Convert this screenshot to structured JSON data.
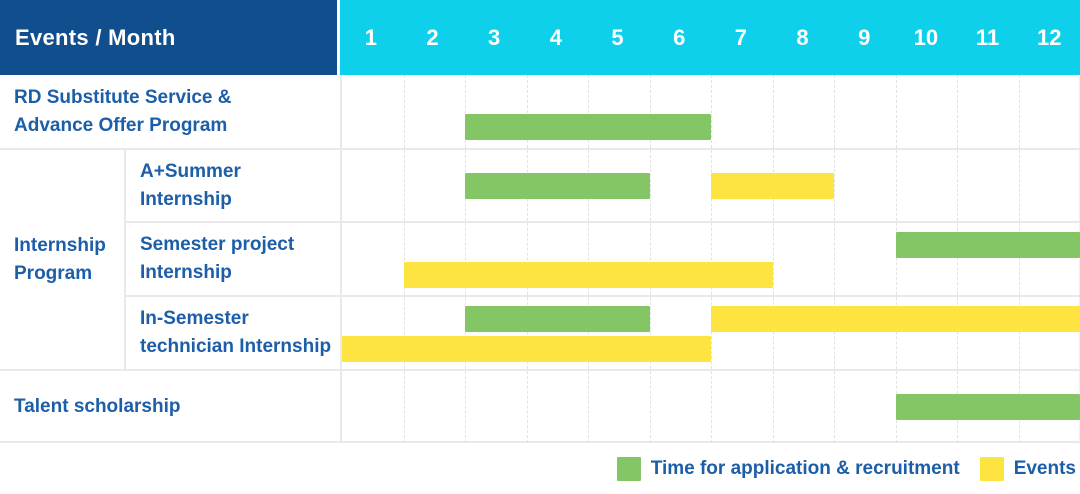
{
  "header": {
    "title": "Events / Month"
  },
  "months": [
    "1",
    "2",
    "3",
    "4",
    "5",
    "6",
    "7",
    "8",
    "9",
    "10",
    "11",
    "12"
  ],
  "colors": {
    "header_navy": "#114e8d",
    "header_cyan": "#0fd0ea",
    "recruitment_green": "#84c566",
    "event_yellow": "#fde440",
    "label_blue": "#1c5ea8",
    "grid_line": "#e9e9e9"
  },
  "group_label_lines": [
    "Internship",
    "Program"
  ],
  "rows": [
    {
      "label_lines": [
        "RD Substitute Service &",
        "Advance Offer Program"
      ],
      "group": null,
      "lanes": [
        [],
        [
          {
            "kind": "recruitment",
            "start_month": 3,
            "end_month": 6
          }
        ]
      ]
    },
    {
      "label_lines": [
        "A+Summer",
        "Internship"
      ],
      "group": "Internship Program",
      "lanes": [
        [
          {
            "kind": "recruitment",
            "start_month": 3,
            "end_month": 5
          },
          {
            "kind": "event",
            "start_month": 7,
            "end_month": 8
          }
        ]
      ]
    },
    {
      "label_lines": [
        "Semester project",
        "Internship"
      ],
      "group": "Internship Program",
      "lanes": [
        [
          {
            "kind": "recruitment",
            "start_month": 10,
            "end_month": 12
          }
        ],
        [
          {
            "kind": "event",
            "start_month": 2,
            "end_month": 7
          }
        ]
      ]
    },
    {
      "label_lines": [
        "In-Semester",
        "technician Internship"
      ],
      "group": "Internship Program",
      "lanes": [
        [
          {
            "kind": "recruitment",
            "start_month": 3,
            "end_month": 5
          },
          {
            "kind": "event",
            "start_month": 7,
            "end_month": 12
          }
        ],
        [
          {
            "kind": "event",
            "start_month": 1,
            "end_month": 6
          }
        ]
      ]
    },
    {
      "label_lines": [
        "Talent scholarship"
      ],
      "group": null,
      "lanes": [
        [
          {
            "kind": "recruitment",
            "start_month": 10,
            "end_month": 12
          }
        ]
      ]
    }
  ],
  "legend": [
    {
      "kind": "recruitment",
      "label": "Time for application & recruitment"
    },
    {
      "kind": "event",
      "label": "Events"
    }
  ],
  "chart_data": {
    "type": "bar",
    "subtype": "gantt",
    "title": "Events / Month",
    "x": {
      "label": "Month",
      "ticks": [
        1,
        2,
        3,
        4,
        5,
        6,
        7,
        8,
        9,
        10,
        11,
        12
      ],
      "range": [
        1,
        12
      ]
    },
    "grid": true,
    "legend_position": "bottom-right",
    "series_legend": [
      {
        "name": "Time for application & recruitment",
        "color": "#84c566"
      },
      {
        "name": "Events",
        "color": "#fde440"
      }
    ],
    "tasks": [
      {
        "name": "RD Substitute Service & Advance Offer Program",
        "group": null,
        "bars": [
          {
            "series": "Time for application & recruitment",
            "start_month": 3,
            "end_month": 6
          }
        ]
      },
      {
        "name": "A+Summer Internship",
        "group": "Internship Program",
        "bars": [
          {
            "series": "Time for application & recruitment",
            "start_month": 3,
            "end_month": 5
          },
          {
            "series": "Events",
            "start_month": 7,
            "end_month": 8
          }
        ]
      },
      {
        "name": "Semester project Internship",
        "group": "Internship Program",
        "bars": [
          {
            "series": "Time for application & recruitment",
            "start_month": 10,
            "end_month": 12
          },
          {
            "series": "Events",
            "start_month": 2,
            "end_month": 7
          }
        ]
      },
      {
        "name": "In-Semester technician Internship",
        "group": "Internship Program",
        "bars": [
          {
            "series": "Time for application & recruitment",
            "start_month": 3,
            "end_month": 5
          },
          {
            "series": "Events",
            "start_month": 7,
            "end_month": 12
          },
          {
            "series": "Events",
            "start_month": 1,
            "end_month": 6
          }
        ]
      },
      {
        "name": "Talent scholarship",
        "group": null,
        "bars": [
          {
            "series": "Time for application & recruitment",
            "start_month": 10,
            "end_month": 12
          }
        ]
      }
    ]
  }
}
